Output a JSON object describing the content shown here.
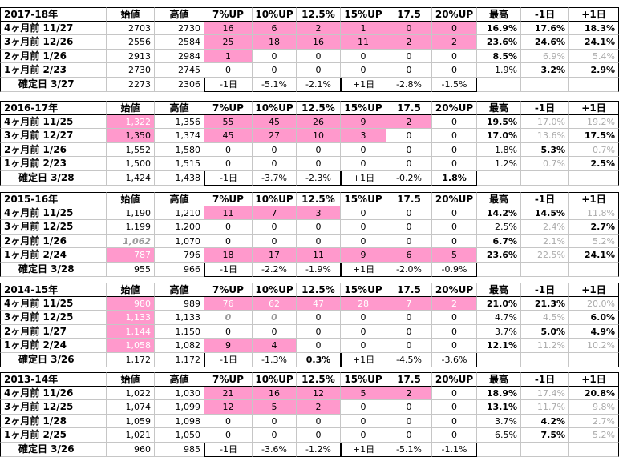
{
  "colors": {
    "pink": "#ff99cc",
    "grey": "#aaaaaa"
  },
  "headers": [
    "始値",
    "高値",
    "7%UP",
    "10%UP",
    "12.5%",
    "15%UP",
    "17.5",
    "20%UP",
    "最高",
    "-1日",
    "+1日"
  ],
  "blocks": [
    {
      "title": "2017-18年",
      "rows": [
        {
          "label": "4ヶ月前 11/27",
          "open": "2703",
          "high": "2730",
          "ups": [
            "16",
            "6",
            "2",
            "1",
            "0",
            "0"
          ],
          "pink": 6,
          "max": "16.9%",
          "m1": "17.6%",
          "p1": "18.3%"
        },
        {
          "label": "3ヶ月前 12/26",
          "open": "2556",
          "high": "2584",
          "ups": [
            "25",
            "18",
            "16",
            "11",
            "2",
            "2"
          ],
          "pink": 6,
          "max": "23.6%",
          "m1": "24.6%",
          "p1": "24.1%"
        },
        {
          "label": "2ヶ月前 1/26",
          "open": "2913",
          "high": "2984",
          "ups": [
            "1",
            "0",
            "0",
            "0",
            "0",
            "0"
          ],
          "pink": 1,
          "max": "8.5%",
          "m1": "6.9%",
          "p1": "5.4%",
          "m1grey": true,
          "p1grey": true
        },
        {
          "label": "1ヶ月前 2/23",
          "open": "2730",
          "high": "2745",
          "ups": [
            "0",
            "0",
            "0",
            "0",
            "0",
            "0"
          ],
          "pink": 0,
          "max": "1.9%",
          "m1": "3.2%",
          "p1": "2.9%"
        },
        {
          "label": "確定日 3/27",
          "open": "2273",
          "high": "2306",
          "ups": [
            "-1日",
            "-5.1%",
            "-2.1%",
            "+1日",
            "-2.8%",
            "-1.5%"
          ],
          "confirm": true
        }
      ]
    },
    {
      "title": "2016-17年",
      "rows": [
        {
          "label": "4ヶ月前 11/25",
          "open": "1,322",
          "high": "1,356",
          "ups": [
            "55",
            "45",
            "26",
            "9",
            "2",
            "0"
          ],
          "pink": 5,
          "openPink": true,
          "max": "19.5%",
          "m1": "17.0%",
          "p1": "19.2%",
          "m1grey": true,
          "p1grey": true
        },
        {
          "label": "3ヶ月前 12/27",
          "open": "1,350",
          "high": "1,374",
          "ups": [
            "45",
            "27",
            "10",
            "3",
            "0",
            "0"
          ],
          "pink": 4,
          "openPink": true,
          "openDark": true,
          "max": "17.0%",
          "m1": "13.6%",
          "p1": "17.5%",
          "m1grey": true
        },
        {
          "label": "2ヶ月前 1/26",
          "open": "1,552",
          "high": "1,580",
          "ups": [
            "0",
            "0",
            "0",
            "0",
            "0",
            "0"
          ],
          "pink": 0,
          "max": "1.8%",
          "m1": "5.3%",
          "p1": "0.7%",
          "p1grey": true
        },
        {
          "label": "1ヶ月前 2/23",
          "open": "1,500",
          "high": "1,515",
          "ups": [
            "0",
            "0",
            "0",
            "0",
            "0",
            "0"
          ],
          "pink": 0,
          "max": "1.2%",
          "m1": "0.7%",
          "p1": "2.5%",
          "m1grey": true
        },
        {
          "label": "確定日 3/28",
          "open": "1,424",
          "high": "1,438",
          "ups": [
            "-1日",
            "-3.7%",
            "-2.3%",
            "+1日",
            "-0.2%",
            "1.8%"
          ],
          "confirm": true
        }
      ]
    },
    {
      "title": "2015-16年",
      "rows": [
        {
          "label": "4ヶ月前 11/25",
          "open": "1,190",
          "high": "1,210",
          "ups": [
            "11",
            "7",
            "3",
            "0",
            "0",
            "0"
          ],
          "pink": 3,
          "max": "14.2%",
          "m1": "14.5%",
          "p1": "11.8%",
          "p1grey": true
        },
        {
          "label": "3ヶ月前 12/25",
          "open": "1,199",
          "high": "1,200",
          "ups": [
            "0",
            "0",
            "0",
            "0",
            "0",
            "0"
          ],
          "pink": 0,
          "max": "2.5%",
          "m1": "2.4%",
          "p1": "2.7%",
          "m1grey": true
        },
        {
          "label": "2ヶ月前 1/26",
          "open": "1,062",
          "high": "1,070",
          "ups": [
            "0",
            "0",
            "0",
            "0",
            "0",
            "0"
          ],
          "pink": 0,
          "openItalic": true,
          "max": "6.7%",
          "m1": "2.1%",
          "p1": "5.2%",
          "m1grey": true,
          "p1grey": true
        },
        {
          "label": "1ヶ月前 2/24",
          "open": "787",
          "high": "796",
          "ups": [
            "18",
            "17",
            "11",
            "9",
            "6",
            "5"
          ],
          "pink": 6,
          "openPink": true,
          "max": "23.6%",
          "m1": "22.5%",
          "p1": "24.1%",
          "m1grey": true
        },
        {
          "label": "確定日 3/28",
          "open": "955",
          "high": "966",
          "ups": [
            "-1日",
            "-2.2%",
            "-1.9%",
            "+1日",
            "-2.0%",
            "-0.9%"
          ],
          "confirm": true
        }
      ]
    },
    {
      "title": "2014-15年",
      "rows": [
        {
          "label": "4ヶ月前 11/25",
          "open": "980",
          "high": "989",
          "ups": [
            "76",
            "62",
            "47",
            "28",
            "7",
            "2"
          ],
          "pink": 6,
          "openPink": true,
          "max": "21.0%",
          "m1": "21.3%",
          "p1": "20.0%",
          "p1grey": true
        },
        {
          "label": "3ヶ月前 12/25",
          "open": "1,133",
          "high": "1,133",
          "ups": [
            "0",
            "0",
            "0",
            "0",
            "0",
            "0"
          ],
          "pink": 0,
          "openPink": true,
          "italicUps": 2,
          "max": "4.7%",
          "m1": "4.5%",
          "p1": "6.0%",
          "m1grey": true
        },
        {
          "label": "2ヶ月前 1/27",
          "open": "1,144",
          "high": "1,150",
          "ups": [
            "0",
            "0",
            "0",
            "0",
            "0",
            "0"
          ],
          "pink": 0,
          "openPink": true,
          "max": "3.7%",
          "m1": "5.0%",
          "p1": "4.9%"
        },
        {
          "label": "1ヶ月前 2/24",
          "open": "1,058",
          "high": "1,082",
          "ups": [
            "9",
            "4",
            "0",
            "0",
            "0",
            "0"
          ],
          "pink": 2,
          "openPink": true,
          "max": "12.1%",
          "m1": "11.2%",
          "p1": "10.2%",
          "m1grey": true,
          "p1grey": true
        },
        {
          "label": "確定日 3/26",
          "open": "1,172",
          "high": "1,172",
          "ups": [
            "-1日",
            "-1.3%",
            "0.3%",
            "+1日",
            "-4.5%",
            "-3.6%"
          ],
          "confirm": true
        }
      ]
    },
    {
      "title": "2013-14年",
      "rows": [
        {
          "label": "4ヶ月前 11/26",
          "open": "1,022",
          "high": "1,030",
          "ups": [
            "21",
            "16",
            "12",
            "5",
            "2",
            "0"
          ],
          "pink": 5,
          "max": "18.9%",
          "m1": "17.4%",
          "p1": "20.8%",
          "m1grey": true
        },
        {
          "label": "3ヶ月前 12/25",
          "open": "1,074",
          "high": "1,099",
          "ups": [
            "12",
            "5",
            "2",
            "0",
            "0",
            "0"
          ],
          "pink": 3,
          "max": "13.1%",
          "m1": "11.7%",
          "p1": "9.8%",
          "m1grey": true,
          "p1grey": true
        },
        {
          "label": "2ヶ月前 1/28",
          "open": "1,059",
          "high": "1,098",
          "ups": [
            "0",
            "0",
            "0",
            "0",
            "0",
            "0"
          ],
          "pink": 0,
          "max": "3.7%",
          "m1": "4.2%",
          "p1": "2.7%",
          "p1grey": true
        },
        {
          "label": "1ヶ月前 2/25",
          "open": "1,021",
          "high": "1,050",
          "ups": [
            "0",
            "0",
            "0",
            "0",
            "0",
            "0"
          ],
          "pink": 0,
          "max": "6.5%",
          "m1": "7.5%",
          "p1": "5.2%",
          "p1grey": true
        },
        {
          "label": "確定日 3/26",
          "open": "960",
          "high": "985",
          "ups": [
            "-1日",
            "-3.6%",
            "-1.2%",
            "+1日",
            "-5.1%",
            "-1.1%"
          ],
          "confirm": true
        }
      ]
    }
  ]
}
